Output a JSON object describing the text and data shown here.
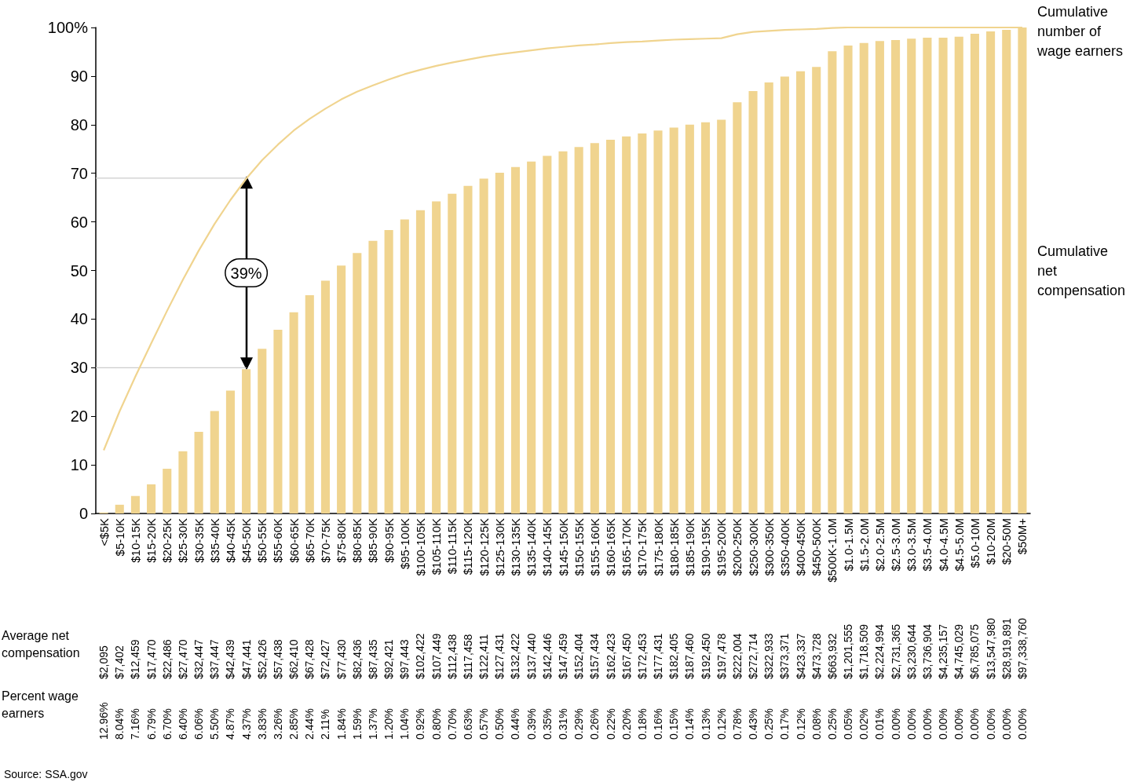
{
  "chart_data": {
    "type": "bar",
    "categories": [
      "<$5K",
      "$5-10K",
      "$10-15K",
      "$15-20K",
      "$20-25K",
      "$25-30K",
      "$30-35K",
      "$35-40K",
      "$40-45K",
      "$45-50K",
      "$50-55K",
      "$55-60K",
      "$60-65K",
      "$65-70K",
      "$70-75K",
      "$75-80K",
      "$80-85K",
      "$85-90K",
      "$90-95K",
      "$95-100K",
      "$100-105K",
      "$105-110K",
      "$110-115K",
      "$115-120K",
      "$120-125K",
      "$125-130K",
      "$130-135K",
      "$135-140K",
      "$140-145K",
      "$145-150K",
      "$150-155K",
      "$155-160K",
      "$160-165K",
      "$165-170K",
      "$170-175K",
      "$175-180K",
      "$180-185K",
      "$185-190K",
      "$190-195K",
      "$195-200K",
      "$200-250K",
      "$250-300K",
      "$300-350K",
      "$350-400K",
      "$400-450K",
      "$450-500K",
      "$500K-1.0M",
      "$1.0-1.5M",
      "$1.5-2.0M",
      "$2.0-2.5M",
      "$2.5-3.0M",
      "$3.0-3.5M",
      "$3.5-4.0M",
      "$4.0-4.5M",
      "$4.5-5.0M",
      "$5.0-10M",
      "$10-20M",
      "$20-50M",
      "$50M+"
    ],
    "series": [
      {
        "name": "Cumulative net compensation",
        "color": "#f0d48f",
        "values": [
          0.2,
          1.8,
          3.6,
          6.0,
          9.2,
          12.8,
          16.8,
          21.1,
          25.3,
          29.7,
          33.9,
          37.8,
          41.4,
          44.9,
          47.9,
          51.0,
          53.6,
          56.1,
          58.3,
          60.5,
          62.4,
          64.2,
          65.8,
          67.4,
          68.9,
          70.1,
          71.3,
          72.4,
          73.6,
          74.5,
          75.4,
          76.2,
          76.9,
          77.6,
          78.2,
          78.8,
          79.4,
          80.0,
          80.5,
          81.0,
          84.6,
          86.9,
          88.7,
          89.9,
          91.0,
          91.9,
          95.1,
          96.3,
          96.8,
          97.2,
          97.4,
          97.7,
          97.9,
          97.9,
          98.1,
          98.7,
          99.2,
          99.5,
          100
        ]
      },
      {
        "type": "line",
        "name": "Cumulative number of wage earners",
        "color": "#f0d48f",
        "values": [
          13.0,
          21.0,
          28.2,
          35.0,
          41.7,
          48.1,
          54.1,
          59.6,
          64.5,
          68.9,
          72.7,
          75.9,
          78.8,
          81.2,
          83.3,
          85.2,
          86.8,
          88.1,
          89.3,
          90.4,
          91.3,
          92.1,
          92.8,
          93.4,
          94.0,
          94.5,
          94.9,
          95.3,
          95.7,
          96.0,
          96.3,
          96.5,
          96.8,
          97.0,
          97.1,
          97.3,
          97.5,
          97.6,
          97.7,
          97.8,
          98.6,
          99.1,
          99.3,
          99.5,
          99.6,
          99.7,
          99.9,
          100,
          100,
          100,
          100,
          100,
          100,
          100,
          100,
          100,
          100,
          100,
          100
        ]
      }
    ],
    "ylim": [
      0,
      100
    ],
    "yticks": [
      0,
      10,
      20,
      30,
      40,
      50,
      60,
      70,
      80,
      90,
      {
        "value": 100,
        "label": "100%"
      }
    ],
    "grid": false,
    "legend": false,
    "marker": "none",
    "line_style": "solid",
    "ref_lines": [
      {
        "axis": "y",
        "value": 69,
        "color": "#cccccc"
      },
      {
        "axis": "y",
        "value": 30,
        "color": "#cccccc"
      }
    ],
    "annotations": [
      "39%",
      "Average net compensation",
      "$2,095",
      "$7,402",
      "$12,459",
      "$17,470",
      "$22,486",
      "$27,470",
      "$32,447",
      "$37,447",
      "$42,439",
      "$47,441",
      "$52,426",
      "$57,438",
      "$62,410",
      "$67,428",
      "$72,427",
      "$77,430",
      "$82,436",
      "$87,435",
      "$92,421",
      "$97,443",
      "$102,422",
      "$107,449",
      "$112,438",
      "$117,458",
      "$122,411",
      "$127,431",
      "$132,422",
      "$137,440",
      "$142,446",
      "$147,459",
      "$152,404",
      "$157,434",
      "$162,423",
      "$167,450",
      "$172,453",
      "$177,431",
      "$182,405",
      "$187,460",
      "$192,450",
      "$197,478",
      "$222,004",
      "$272,714",
      "$322,933",
      "$373,371",
      "$423,337",
      "$473,728",
      "$663,932",
      "$1,201,555",
      "$1,718,509",
      "$2,224,994",
      "$2,731,365",
      "$3,230,644",
      "$3,736,904",
      "$4,235,157",
      "$4,745,029",
      "$6,785,075",
      "$13,547,980",
      "$28,919,891",
      "$97,338,760",
      "Percent wage earners",
      "12.96%",
      "8.04%",
      "7.16%",
      "6.79%",
      "6.70%",
      "6.40%",
      "6.06%",
      "5.50%",
      "4.87%",
      "4.37%",
      "3.83%",
      "3.26%",
      "2.85%",
      "2.44%",
      "2.11%",
      "1.84%",
      "1.59%",
      "1.37%",
      "1.20%",
      "1.04%",
      "0.92%",
      "0.80%",
      "0.70%",
      "0.63%",
      "0.57%",
      "0.50%",
      "0.44%",
      "0.39%",
      "0.35%",
      "0.31%",
      "0.29%",
      "0.26%",
      "0.22%",
      "0.20%",
      "0.18%",
      "0.16%",
      "0.15%",
      "0.14%",
      "0.13%",
      "0.12%",
      "0.78%",
      "0.43%",
      "0.25%",
      "0.17%",
      "0.12%",
      "0.08%",
      "0.25%",
      "0.05%",
      "0.02%",
      "0.01%",
      "0.00%",
      "0.00%",
      "0.00%",
      "0.00%",
      "0.00%",
      "0.00%",
      "0.00%",
      "0.00%",
      "0.00%",
      "Source: SSA.gov"
    ]
  }
}
